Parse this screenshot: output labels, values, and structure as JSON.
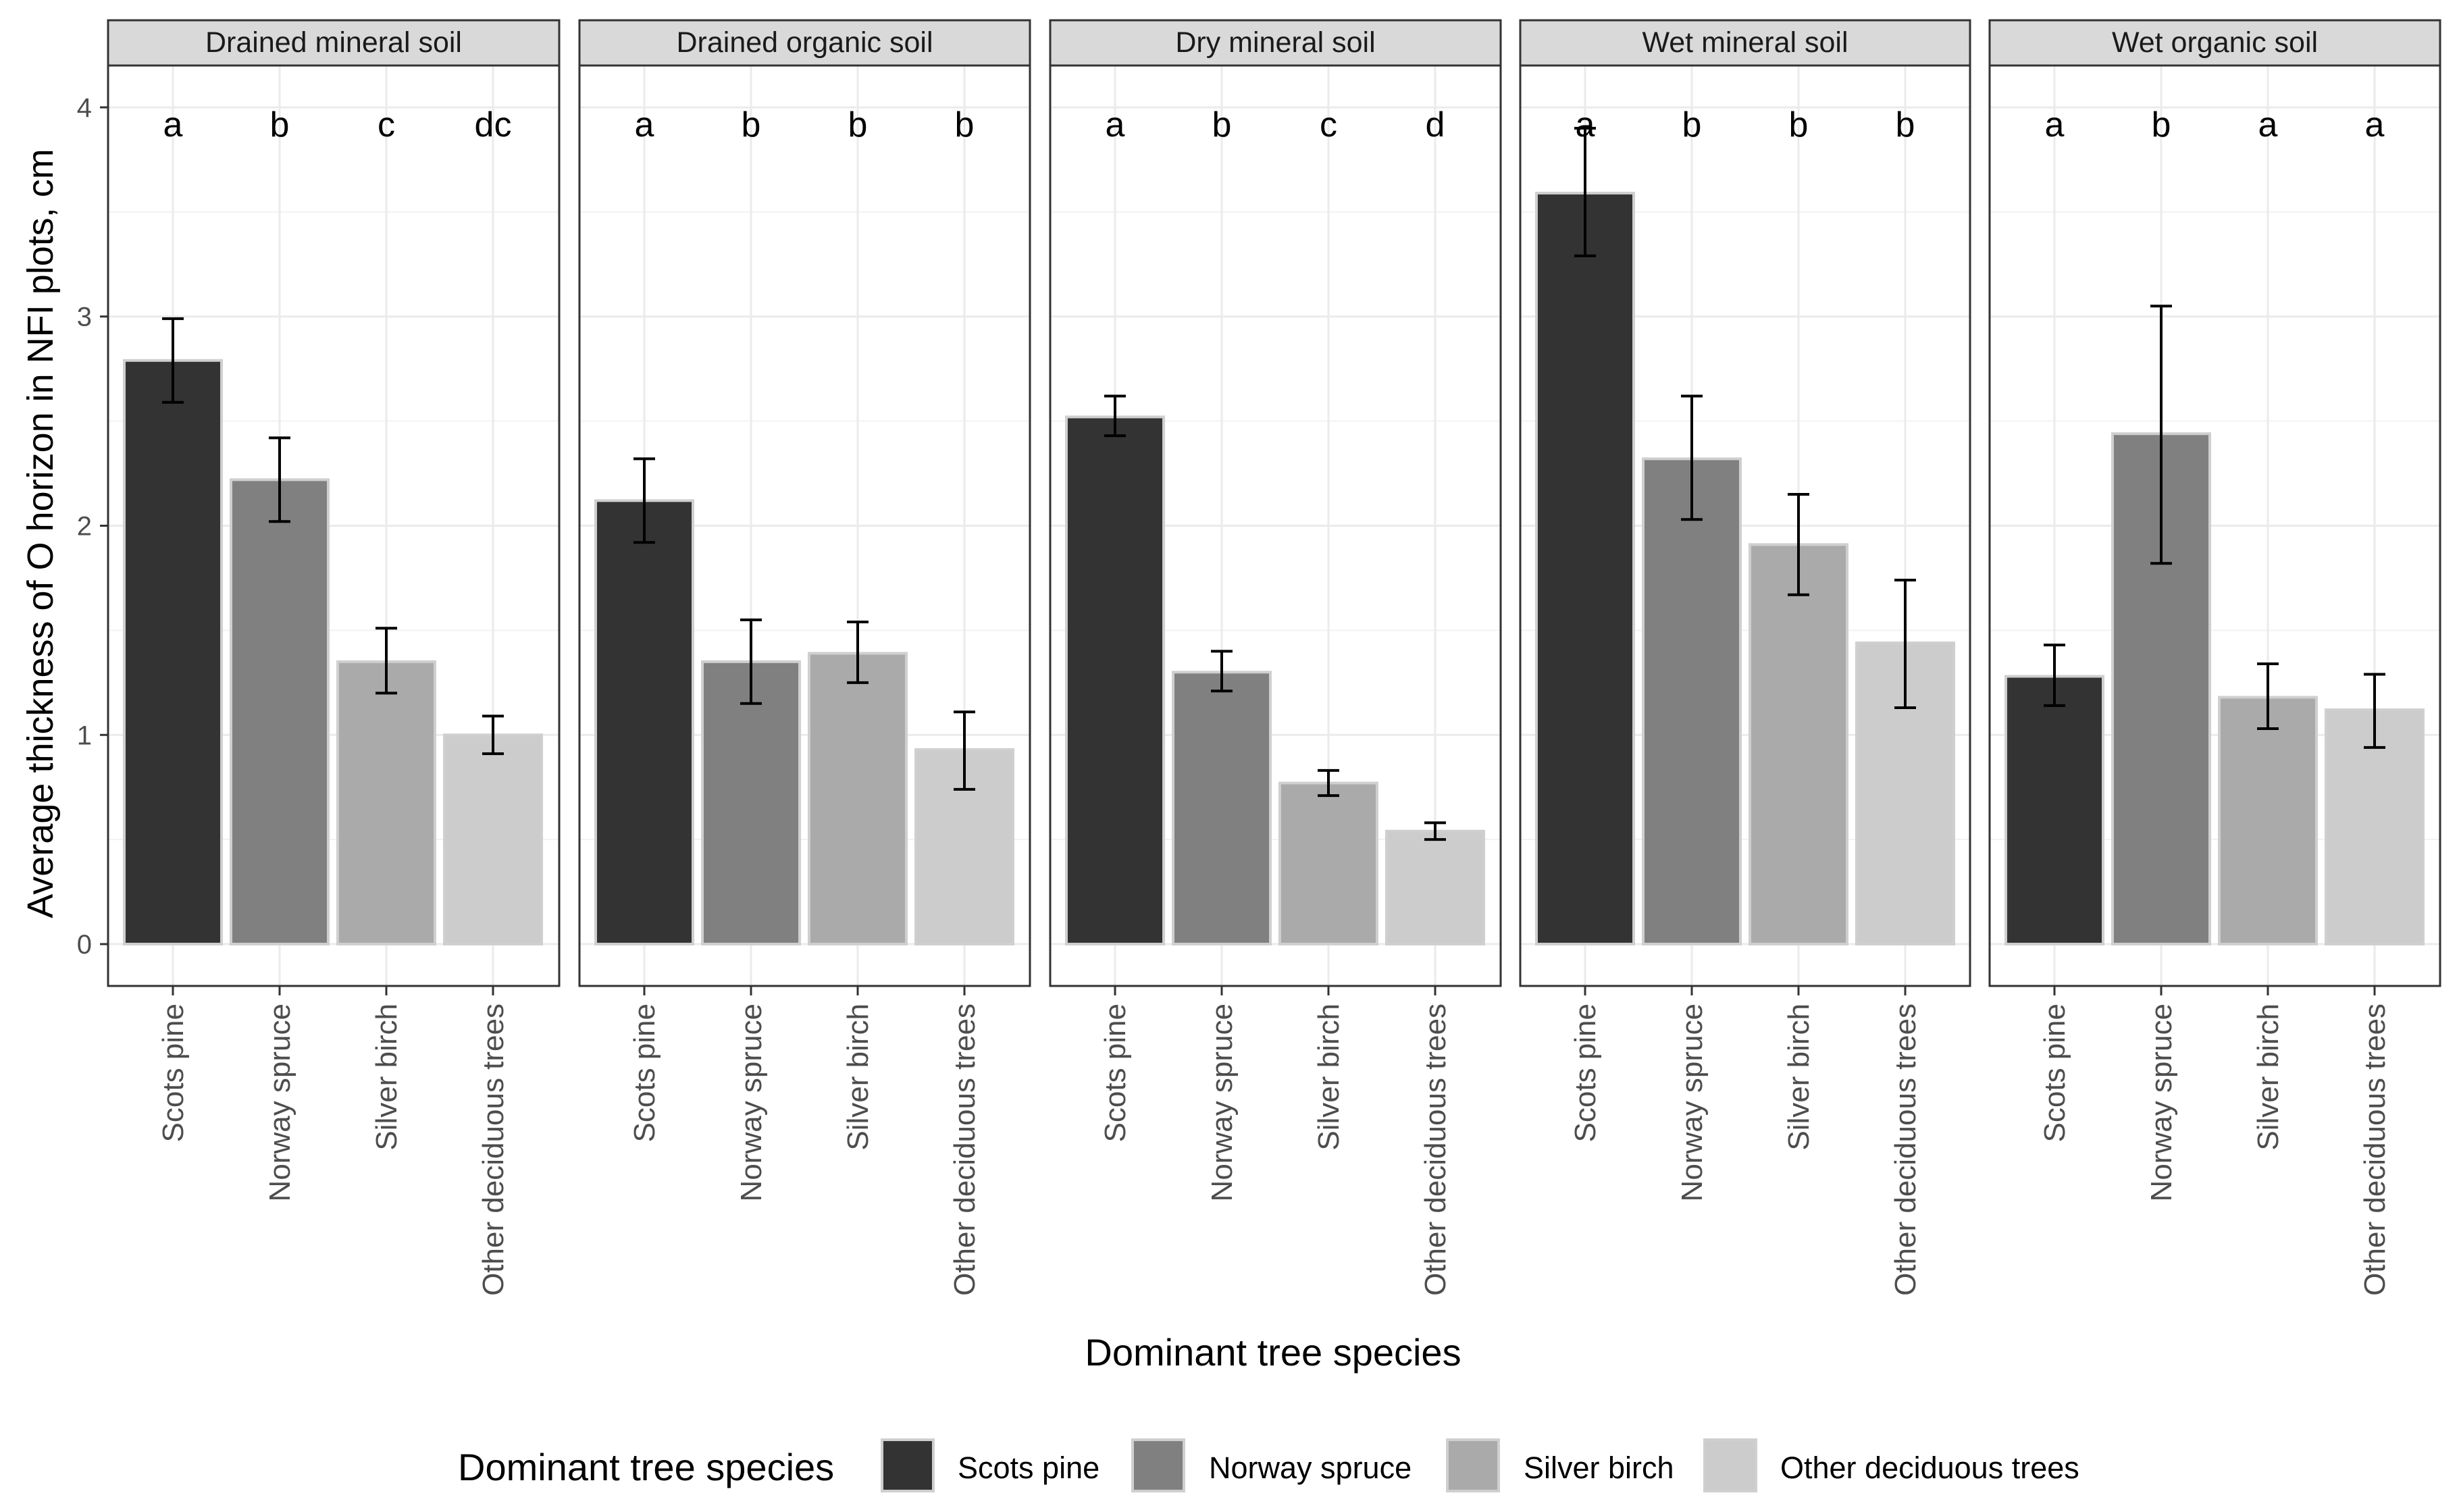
{
  "chart_data": {
    "type": "bar",
    "facet_by": "soil type",
    "ylabel": "Average thickness of O horizon in NFI plots, cm",
    "xlabel": "Dominant tree species",
    "ylim": [
      -0.2,
      4.2
    ],
    "yticks": [
      0,
      1,
      2,
      3,
      4
    ],
    "ytick_labels": [
      "0",
      "1",
      "2",
      "3",
      "4"
    ],
    "grid": true,
    "categories": [
      "Scots pine",
      "Norway spruce",
      "Silver birch",
      "Other deciduous trees"
    ],
    "colors": [
      "#333333",
      "#808080",
      "#aaaaaa",
      "#cccccc"
    ],
    "legend": {
      "title": "Dominant tree species",
      "position": "bottom",
      "entries": [
        "Scots pine",
        "Norway spruce",
        "Silver birch",
        "Other deciduous trees"
      ]
    },
    "facets": [
      {
        "title": "Drained mineral soil",
        "values": [
          2.79,
          2.22,
          1.35,
          1.0
        ],
        "err_low": [
          2.59,
          2.02,
          1.2,
          0.91
        ],
        "err_high": [
          2.99,
          2.42,
          1.51,
          1.09
        ],
        "letters": [
          "a",
          "b",
          "c",
          "dc"
        ]
      },
      {
        "title": "Drained organic soil",
        "values": [
          2.12,
          1.35,
          1.39,
          0.93
        ],
        "err_low": [
          1.92,
          1.15,
          1.25,
          0.74
        ],
        "err_high": [
          2.32,
          1.55,
          1.54,
          1.11
        ],
        "letters": [
          "a",
          "b",
          "b",
          "b"
        ]
      },
      {
        "title": "Dry mineral soil",
        "values": [
          2.52,
          1.3,
          0.77,
          0.54
        ],
        "err_low": [
          2.43,
          1.21,
          0.71,
          0.5
        ],
        "err_high": [
          2.62,
          1.4,
          0.83,
          0.58
        ],
        "letters": [
          "a",
          "b",
          "c",
          "d"
        ]
      },
      {
        "title": "Wet mineral soil",
        "values": [
          3.59,
          2.32,
          1.91,
          1.44
        ],
        "err_low": [
          3.29,
          2.03,
          1.67,
          1.13
        ],
        "err_high": [
          3.9,
          2.62,
          2.15,
          1.74
        ],
        "letters": [
          "a",
          "b",
          "b",
          "b"
        ]
      },
      {
        "title": "Wet organic soil",
        "values": [
          1.28,
          2.44,
          1.18,
          1.12
        ],
        "err_low": [
          1.14,
          1.82,
          1.03,
          0.94
        ],
        "err_high": [
          1.43,
          3.05,
          1.34,
          1.29
        ],
        "letters": [
          "a",
          "b",
          "a",
          "a"
        ]
      }
    ]
  }
}
